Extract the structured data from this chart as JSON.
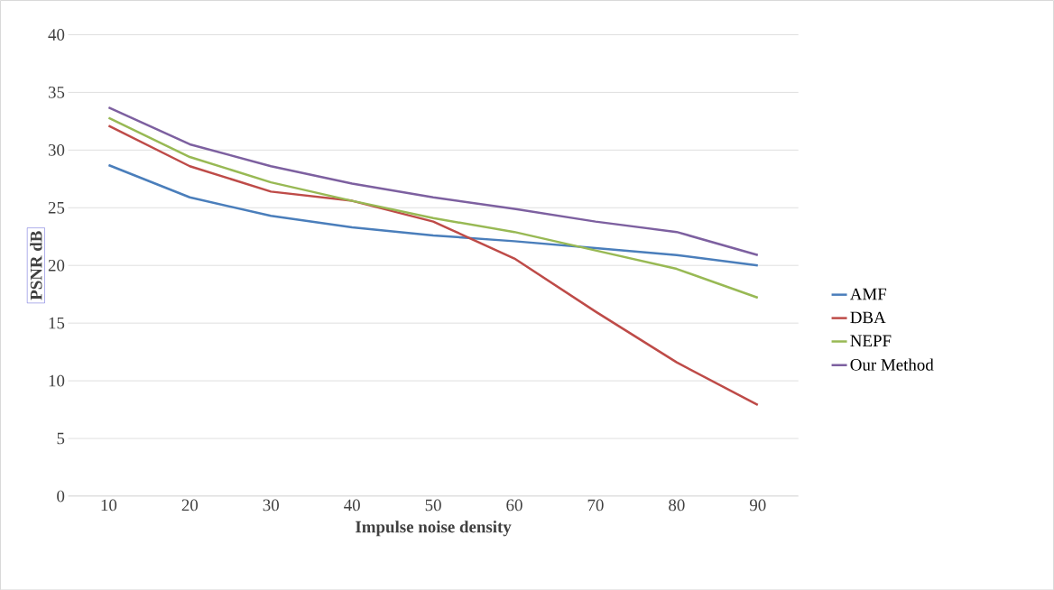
{
  "chart_data": {
    "type": "line",
    "xlabel": "Impulse noise density",
    "ylabel": "PSNR  dB",
    "categories": [
      "10",
      "20",
      "30",
      "40",
      "50",
      "60",
      "70",
      "80",
      "90"
    ],
    "series": [
      {
        "name": "AMF",
        "color": "#4a7ebb",
        "values": [
          28.7,
          25.9,
          24.3,
          23.3,
          22.6,
          22.1,
          21.5,
          20.9,
          20.0
        ]
      },
      {
        "name": "DBA",
        "color": "#be4b48",
        "values": [
          32.1,
          28.6,
          26.4,
          25.6,
          23.8,
          20.6,
          16.0,
          11.6,
          7.9
        ]
      },
      {
        "name": "NEPF",
        "color": "#98b954",
        "values": [
          32.8,
          29.4,
          27.2,
          25.6,
          24.1,
          22.9,
          21.3,
          19.7,
          17.2
        ]
      },
      {
        "name": "Our Method",
        "color": "#7d60a0",
        "values": [
          33.7,
          30.5,
          28.6,
          27.1,
          25.9,
          24.9,
          23.8,
          22.9,
          20.9
        ]
      }
    ],
    "ylim": [
      0,
      40
    ],
    "yticks": [
      0,
      5,
      10,
      15,
      20,
      25,
      30,
      35,
      40
    ],
    "grid": "y",
    "legend": "right",
    "marker": "none",
    "line_style": "solid"
  }
}
